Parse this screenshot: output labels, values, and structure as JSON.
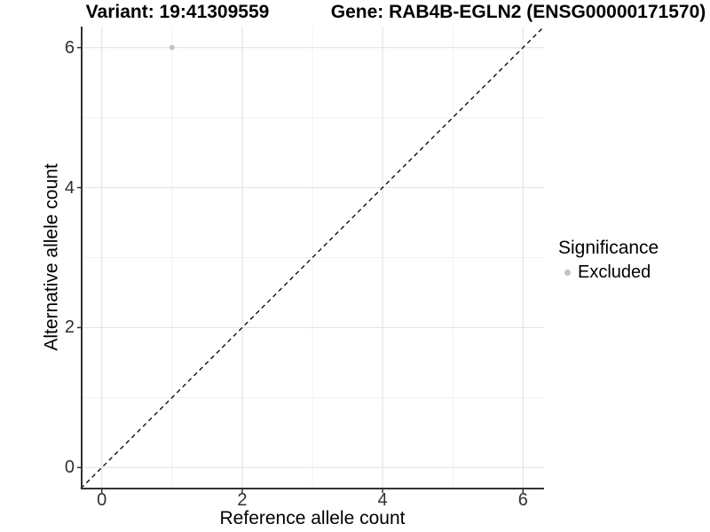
{
  "titles": {
    "left": "Variant: 19:41309559",
    "right": "Gene: RAB4B-EGLN2 (ENSG00000171570)"
  },
  "legend": {
    "title": "Significance",
    "items": [
      {
        "label": "Excluded",
        "color": "#c4c4c4"
      }
    ]
  },
  "chart_data": {
    "type": "scatter",
    "title": "Variant: 19:41309559  |  Gene: RAB4B-EGLN2 (ENSG00000171570)",
    "xlabel": "Reference allele count",
    "ylabel": "Alternative allele count",
    "xlim": [
      -0.3,
      6.3
    ],
    "ylim": [
      -0.3,
      6.3
    ],
    "x_major_ticks": [
      0,
      2,
      4,
      6
    ],
    "y_major_ticks": [
      0,
      2,
      4,
      6
    ],
    "x_minor_ticks": [
      1,
      3,
      5
    ],
    "y_minor_ticks": [
      1,
      3,
      5
    ],
    "grid": true,
    "legend_position": "right",
    "series": [
      {
        "name": "Excluded",
        "color": "#c4c4c4",
        "points": [
          {
            "x": 1,
            "y": 6
          }
        ]
      }
    ],
    "reference_line": {
      "description": "identity line y = x",
      "style": "dashed",
      "color": "#000000",
      "from": [
        -0.3,
        -0.3
      ],
      "to": [
        6.3,
        6.3
      ]
    },
    "style_colors": {
      "axis_line": "#333333",
      "tick_mark": "#333333",
      "grid_major": "#e4e4e4",
      "grid_minor": "#f1f1f1"
    }
  }
}
